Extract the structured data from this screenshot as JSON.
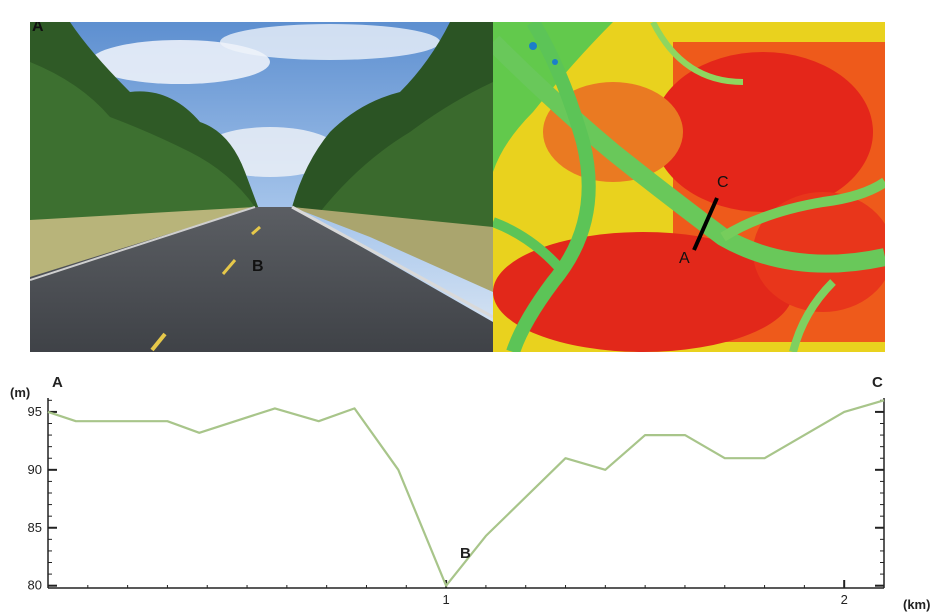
{
  "photo": {
    "label_a": "A",
    "label_b": "B"
  },
  "map": {
    "label_c": "C",
    "transect_start": "A",
    "transect_end": "C"
  },
  "chart_data": {
    "type": "line",
    "title": "",
    "xlabel": "(km)",
    "ylabel": "(m)",
    "xlim": [
      0,
      2.1
    ],
    "ylim": [
      79.8,
      96.2
    ],
    "yticks": [
      80,
      85,
      90,
      95
    ],
    "xticks": [
      1,
      2
    ],
    "grid": false,
    "series": [
      {
        "color": "#a8c58a",
        "x": [
          0.0,
          0.07,
          0.3,
          0.38,
          0.57,
          0.68,
          0.77,
          0.88,
          1.0,
          1.1,
          1.3,
          1.4,
          1.5,
          1.6,
          1.7,
          1.8,
          2.0,
          2.1
        ],
        "y": [
          95.0,
          94.2,
          94.2,
          93.2,
          95.3,
          94.2,
          95.3,
          90.0,
          80.0,
          84.3,
          91.0,
          90.0,
          93.0,
          93.0,
          91.0,
          91.0,
          95.0,
          96.0
        ]
      }
    ],
    "annotations": [
      {
        "text": "A",
        "position": "top-left"
      },
      {
        "text": "C",
        "position": "top-right"
      },
      {
        "text": "B",
        "position": "at-minimum"
      }
    ]
  }
}
